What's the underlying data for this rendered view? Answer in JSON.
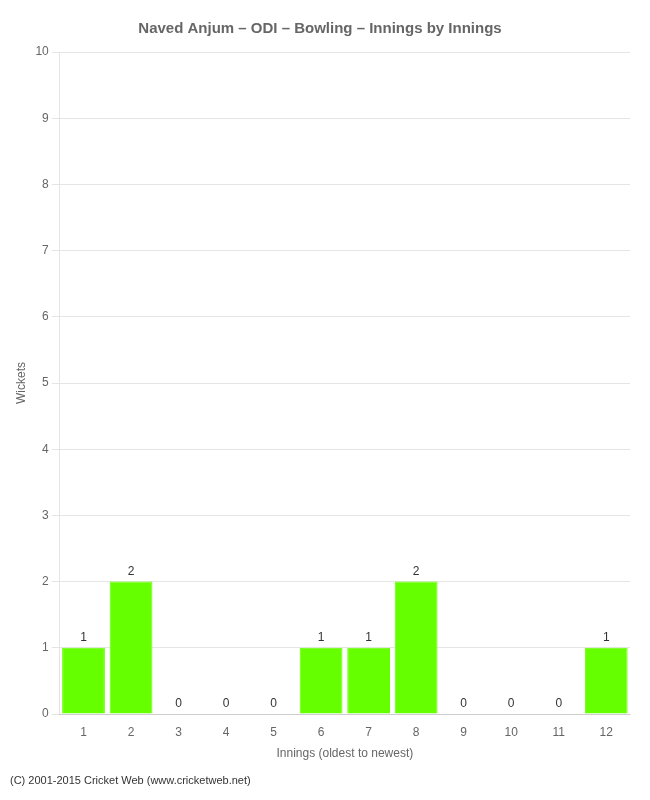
{
  "chart_data": {
    "type": "bar",
    "title": "Naved Anjum – ODI – Bowling – Innings by Innings",
    "x_label": "Innings (oldest to newest)",
    "y_label": "Wickets",
    "categories": [
      1,
      2,
      3,
      4,
      5,
      6,
      7,
      8,
      9,
      10,
      11,
      12
    ],
    "values": [
      1,
      2,
      0,
      0,
      0,
      1,
      1,
      2,
      0,
      0,
      0,
      1
    ],
    "color": "#66ff00",
    "ylim": [
      0,
      10
    ],
    "yticks": [
      0,
      1,
      2,
      3,
      4,
      5,
      6,
      7,
      8,
      9,
      10
    ],
    "grid": true,
    "data_labels": true,
    "annotations": [
      "(C) 2001-2015 Cricket Web (www.cricketweb.net)"
    ]
  }
}
